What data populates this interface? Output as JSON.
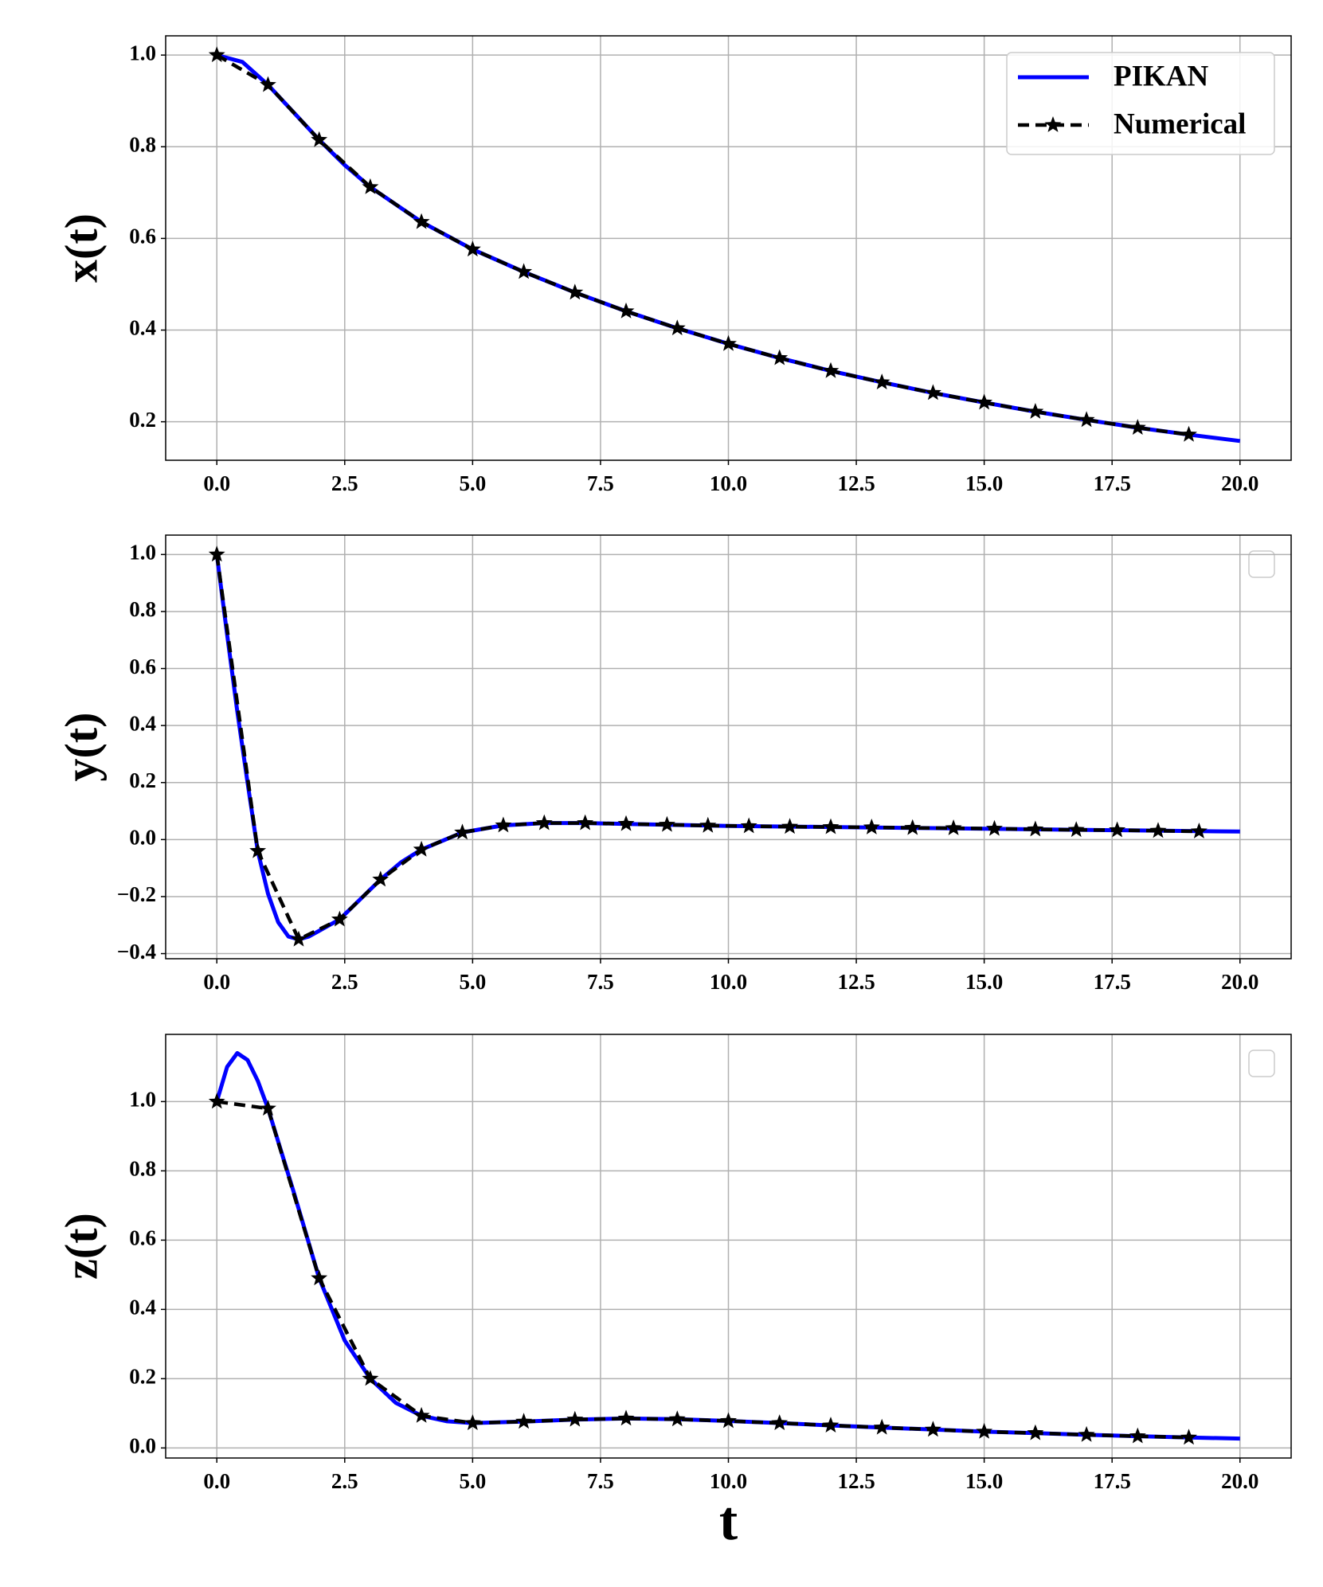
{
  "chart_data": [
    {
      "type": "line",
      "ylabel": "x(t)",
      "grid": true,
      "legend": "upper right",
      "xlim": [
        -1,
        21
      ],
      "ylim": [
        0.116,
        1.042
      ],
      "xticks": [
        {
          "value": 0,
          "label": "0.0"
        },
        2.5,
        {
          "value": 5,
          "label": "5.0"
        },
        7.5,
        {
          "value": 10,
          "label": "10.0"
        },
        12.5,
        {
          "value": 15,
          "label": "15.0"
        },
        17.5,
        {
          "value": 20,
          "label": "20.0"
        }
      ],
      "yticks": [
        0.2,
        0.4,
        0.6,
        0.8,
        {
          "value": 1,
          "label": "1.0"
        }
      ],
      "series": [
        {
          "name": "PIKAN",
          "color": "#0000ff",
          "linestyle": "solid",
          "x": [
            0,
            0.5,
            1,
            1.5,
            2,
            2.5,
            3,
            4,
            5,
            6,
            7,
            8,
            9,
            10,
            11,
            12,
            13,
            14,
            15,
            16,
            17,
            18,
            19,
            20
          ],
          "values": [
            1.0,
            0.985,
            0.935,
            0.875,
            0.815,
            0.76,
            0.712,
            0.636,
            0.576,
            0.527,
            0.482,
            0.441,
            0.404,
            0.37,
            0.339,
            0.311,
            0.286,
            0.263,
            0.242,
            0.222,
            0.204,
            0.187,
            0.172,
            0.158
          ]
        },
        {
          "name": "Numerical",
          "color": "#000000",
          "linestyle": "dashed",
          "marker": "star",
          "x": [
            0,
            1,
            2,
            3,
            4,
            5,
            6,
            7,
            8,
            9,
            10,
            11,
            12,
            13,
            14,
            15,
            16,
            17,
            18,
            19
          ],
          "values": [
            1.0,
            0.935,
            0.815,
            0.712,
            0.636,
            0.576,
            0.527,
            0.482,
            0.441,
            0.404,
            0.37,
            0.339,
            0.311,
            0.286,
            0.263,
            0.242,
            0.222,
            0.204,
            0.187,
            0.172
          ]
        }
      ]
    },
    {
      "type": "line",
      "ylabel": "y(t)",
      "grid": true,
      "xlim": [
        -1,
        21
      ],
      "ylim": [
        -0.418,
        1.068
      ],
      "xticks": [
        {
          "value": 0,
          "label": "0.0"
        },
        2.5,
        {
          "value": 5,
          "label": "5.0"
        },
        7.5,
        {
          "value": 10,
          "label": "10.0"
        },
        12.5,
        {
          "value": 15,
          "label": "15.0"
        },
        17.5,
        {
          "value": 20,
          "label": "20.0"
        }
      ],
      "yticks": [
        {
          "value": -0.4,
          "label": "−0.4"
        },
        {
          "value": -0.2,
          "label": "−0.2"
        },
        {
          "value": 0,
          "label": "0.0"
        },
        0.2,
        0.4,
        0.6,
        0.8,
        {
          "value": 1,
          "label": "1.0"
        }
      ],
      "series": [
        {
          "name": "PIKAN",
          "color": "#0000ff",
          "linestyle": "solid",
          "x": [
            0,
            0.2,
            0.4,
            0.6,
            0.8,
            1.0,
            1.2,
            1.4,
            1.6,
            1.8,
            2.0,
            2.4,
            2.8,
            3.2,
            3.6,
            4,
            4.8,
            5.6,
            6.4,
            7.2,
            8,
            10,
            12,
            14,
            16,
            18,
            20
          ],
          "values": [
            1.0,
            0.72,
            0.45,
            0.2,
            -0.04,
            -0.19,
            -0.29,
            -0.34,
            -0.35,
            -0.34,
            -0.32,
            -0.28,
            -0.21,
            -0.14,
            -0.08,
            -0.035,
            0.025,
            0.05,
            0.058,
            0.058,
            0.055,
            0.048,
            0.044,
            0.04,
            0.036,
            0.032,
            0.028
          ]
        },
        {
          "name": "Numerical",
          "color": "#000000",
          "linestyle": "dashed",
          "marker": "star",
          "x": [
            0,
            0.8,
            1.6,
            2.4,
            3.2,
            4.0,
            4.8,
            5.6,
            6.4,
            7.2,
            8.0,
            8.8,
            9.6,
            10.4,
            11.2,
            12.0,
            12.8,
            13.6,
            14.4,
            15.2,
            16.0,
            16.8,
            17.6,
            18.4,
            19.2
          ],
          "values": [
            1.0,
            -0.04,
            -0.35,
            -0.28,
            -0.14,
            -0.035,
            0.025,
            0.05,
            0.058,
            0.058,
            0.055,
            0.052,
            0.049,
            0.047,
            0.045,
            0.044,
            0.043,
            0.041,
            0.04,
            0.038,
            0.036,
            0.034,
            0.033,
            0.031,
            0.029
          ]
        }
      ]
    },
    {
      "type": "line",
      "ylabel": "z(t)",
      "xlabel": "t",
      "grid": true,
      "xlim": [
        -1,
        21
      ],
      "ylim": [
        -0.029,
        1.194
      ],
      "xticks": [
        {
          "value": 0,
          "label": "0.0"
        },
        2.5,
        {
          "value": 5,
          "label": "5.0"
        },
        7.5,
        {
          "value": 10,
          "label": "10.0"
        },
        12.5,
        {
          "value": 15,
          "label": "15.0"
        },
        17.5,
        {
          "value": 20,
          "label": "20.0"
        }
      ],
      "yticks": [
        {
          "value": 0,
          "label": "0.0"
        },
        0.2,
        0.4,
        0.6,
        0.8,
        {
          "value": 1,
          "label": "1.0"
        }
      ],
      "series": [
        {
          "name": "PIKAN",
          "color": "#0000ff",
          "linestyle": "solid",
          "x": [
            0,
            0.2,
            0.4,
            0.6,
            0.8,
            1,
            1.5,
            2,
            2.5,
            3,
            3.5,
            4,
            4.5,
            5,
            6,
            7,
            8,
            9,
            10,
            11,
            12,
            13,
            14,
            15,
            16,
            17,
            18,
            19,
            20
          ],
          "values": [
            1.0,
            1.1,
            1.14,
            1.12,
            1.06,
            0.98,
            0.74,
            0.49,
            0.31,
            0.2,
            0.13,
            0.093,
            0.077,
            0.072,
            0.076,
            0.082,
            0.085,
            0.083,
            0.078,
            0.072,
            0.065,
            0.059,
            0.053,
            0.047,
            0.043,
            0.038,
            0.034,
            0.03,
            0.027
          ]
        },
        {
          "name": "Numerical",
          "color": "#000000",
          "linestyle": "dashed",
          "marker": "star",
          "x": [
            0,
            1,
            2,
            3,
            4,
            5,
            6,
            7,
            8,
            9,
            10,
            11,
            12,
            13,
            14,
            15,
            16,
            17,
            18,
            19
          ],
          "values": [
            1.0,
            0.98,
            0.49,
            0.2,
            0.093,
            0.072,
            0.076,
            0.082,
            0.085,
            0.083,
            0.078,
            0.072,
            0.065,
            0.059,
            0.053,
            0.047,
            0.043,
            0.038,
            0.034,
            0.03
          ]
        }
      ]
    }
  ]
}
